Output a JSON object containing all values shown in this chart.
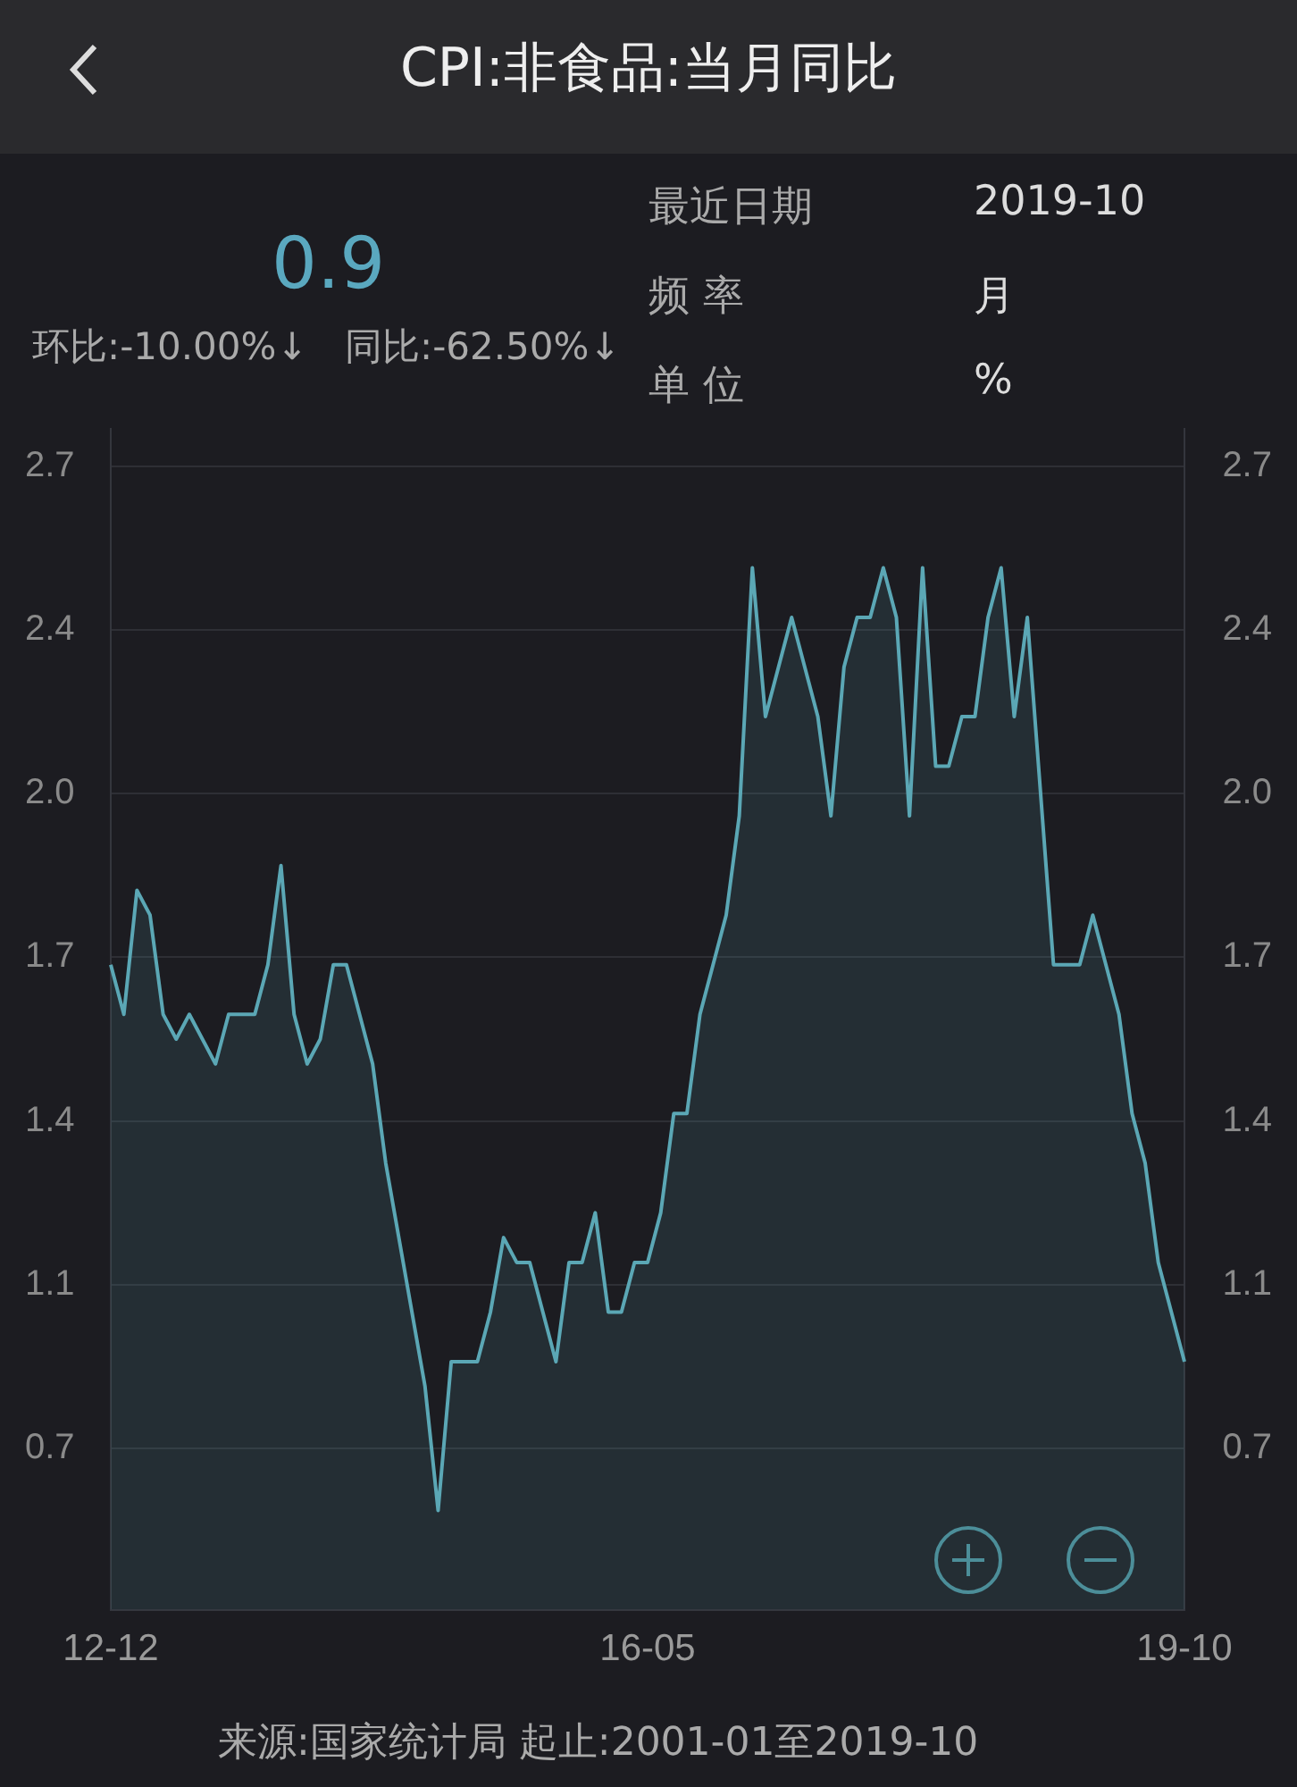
{
  "chart_data": {
    "type": "area",
    "title": "CPI:非食品:当月同比",
    "categories": [
      "12-12",
      null,
      null,
      null,
      null,
      null,
      null,
      null,
      null,
      null,
      null,
      null,
      null,
      null,
      null,
      null,
      null,
      null,
      null,
      null,
      null,
      null,
      null,
      null,
      null,
      null,
      null,
      null,
      null,
      null,
      null,
      null,
      null,
      null,
      null,
      null,
      null,
      null,
      null,
      null,
      null,
      "16-05",
      null,
      null,
      null,
      null,
      null,
      null,
      null,
      null,
      null,
      null,
      null,
      null,
      null,
      null,
      null,
      null,
      null,
      null,
      null,
      null,
      null,
      null,
      null,
      null,
      null,
      null,
      null,
      null,
      null,
      null,
      null,
      null,
      null,
      null,
      null,
      null,
      null,
      null,
      null,
      null,
      "19-10"
    ],
    "series": [
      {
        "color": "#5ba7b5",
        "values": [
          1.7,
          1.6,
          1.85,
          1.8,
          1.6,
          1.55,
          1.6,
          1.55,
          1.5,
          1.6,
          1.6,
          1.6,
          1.7,
          1.9,
          1.6,
          1.5,
          1.55,
          1.7,
          1.7,
          1.6,
          1.5,
          1.3,
          1.15,
          1.0,
          0.85,
          0.6,
          0.9,
          0.9,
          0.9,
          1.0,
          1.15,
          1.1,
          1.1,
          1.0,
          0.9,
          1.1,
          1.1,
          1.2,
          1.0,
          1.0,
          1.1,
          1.1,
          1.2,
          1.4,
          1.4,
          1.6,
          1.7,
          1.8,
          2.0,
          2.5,
          2.2,
          2.3,
          2.4,
          2.3,
          2.2,
          2.0,
          2.3,
          2.4,
          2.4,
          2.5,
          2.4,
          2.0,
          2.5,
          2.1,
          2.1,
          2.2,
          2.2,
          2.4,
          2.5,
          2.2,
          2.4,
          2.05,
          1.7,
          1.7,
          1.7,
          1.8,
          1.7,
          1.6,
          1.4,
          1.3,
          1.1,
          1.0,
          0.9
        ]
      }
    ],
    "ylim": [
      0.4,
      2.78
    ],
    "yticks": [
      {
        "value": 0.725,
        "label": "0.7"
      },
      {
        "value": 1.055,
        "label": "1.1"
      },
      {
        "value": 1.385,
        "label": "1.4"
      },
      {
        "value": 1.715,
        "label": "1.7"
      },
      {
        "value": 2.045,
        "label": "2.0"
      },
      {
        "value": 2.375,
        "label": "2.4"
      },
      {
        "value": 2.705,
        "label": "2.7"
      }
    ],
    "y2lim": [
      0.4,
      2.78
    ],
    "y2ticks": [
      {
        "value": 0.725,
        "label": "0.7"
      },
      {
        "value": 1.055,
        "label": "1.1"
      },
      {
        "value": 1.385,
        "label": "1.4"
      },
      {
        "value": 1.715,
        "label": "1.7"
      },
      {
        "value": 2.045,
        "label": "2.0"
      },
      {
        "value": 2.375,
        "label": "2.4"
      },
      {
        "value": 2.705,
        "label": "2.7"
      }
    ],
    "grid": "y",
    "marker": "none",
    "annotations": [
      "0.9",
      "环比:-10.00%↓",
      "同比:-62.50%↓",
      "最近日期",
      "2019-10",
      "频 率",
      "月",
      "单 位",
      "%",
      "来源:国家统计局 起止:2001-01至2019-10"
    ]
  }
}
